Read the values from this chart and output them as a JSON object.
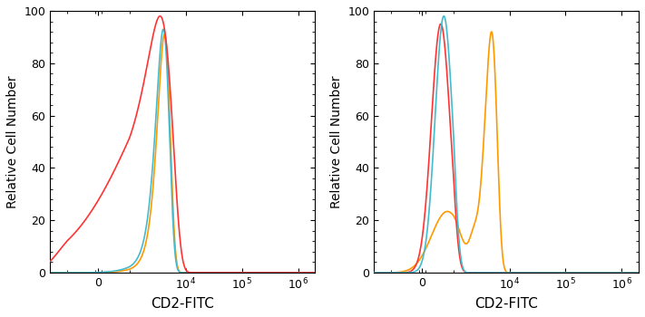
{
  "xlabel": "CD2-FITC",
  "ylabel": "Relative Cell Number",
  "ylim": [
    0,
    100
  ],
  "background_color": "#ffffff",
  "linthresh": 1000,
  "linscale": 0.5,
  "xlim_left": -2000,
  "xlim_right": 2000000,
  "xticks": [
    0,
    10000,
    100000,
    1000000
  ],
  "panel1": {
    "red": {
      "mu": 3500,
      "sigma": 2200,
      "height": 98
    },
    "orange": {
      "mu": 4200,
      "sigma": 1100,
      "height": 91
    },
    "cyan": {
      "mu": 4000,
      "sigma": 1100,
      "height": 93
    }
  },
  "panel2": {
    "red": {
      "mu": 600,
      "sigma": 300,
      "height": 95
    },
    "cyan": {
      "mu": 700,
      "sigma": 280,
      "height": 98
    },
    "orange_peak1": {
      "mu": 800,
      "sigma": 500,
      "height": 23
    },
    "orange_peak2": {
      "mu": 4800,
      "sigma": 1200,
      "height": 92
    },
    "orange_valley": {
      "mu": 2200,
      "sigma": 400,
      "height": 7
    }
  },
  "colors": {
    "red": "#ff3333",
    "orange": "#ff9900",
    "cyan": "#44bbcc"
  }
}
